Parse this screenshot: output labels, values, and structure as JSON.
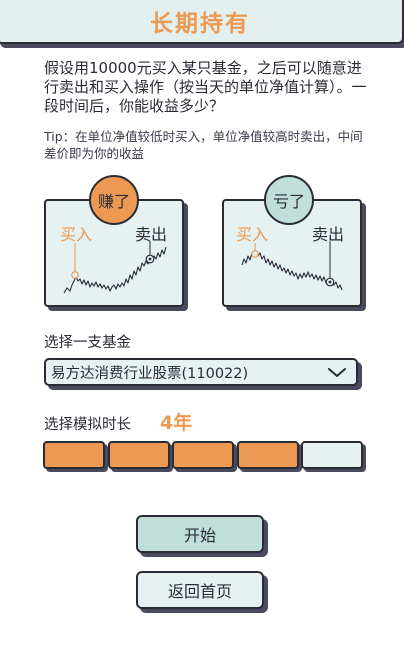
{
  "header": {
    "title": "长期持有"
  },
  "intro": "假设用10000元买入某只基金，之后可以随意进行卖出和买入操作（按当天的单位净值计算）。一段时间后，你能收益多少？",
  "tip": "Tip：在单位净值较低时买入，单位净值较高时卖出，中间差价即为你的收益",
  "examples": {
    "gain": {
      "badge": "赚了",
      "buy": "买入",
      "sell": "卖出"
    },
    "loss": {
      "badge": "亏了",
      "buy": "买入",
      "sell": "卖出"
    }
  },
  "fund_select": {
    "label": "选择一支基金",
    "value": "易方达消费行业股票(110022)"
  },
  "duration": {
    "label": "选择模拟时长",
    "value": "4年",
    "segments_total": 5,
    "segments_selected": 4
  },
  "buttons": {
    "start": "开始",
    "back": "返回首页"
  },
  "colors": {
    "accent": "#ec9a53",
    "mint": "#bfdfd8",
    "panel": "#e6f1f1",
    "ink": "#2b2b36"
  }
}
